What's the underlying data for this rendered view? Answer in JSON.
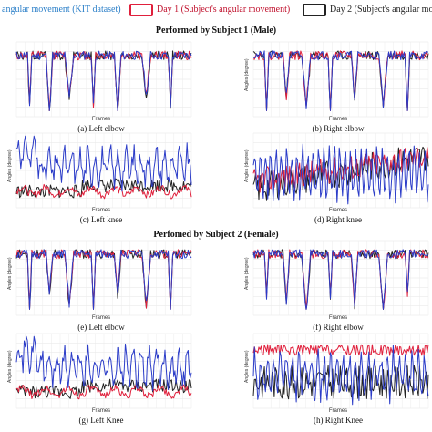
{
  "legend": [
    {
      "label": "angular movement (KIT dataset)",
      "color": "#2b3cc8"
    },
    {
      "label": "Day 1 (Subject's angular movement)",
      "color": "#e0203c"
    },
    {
      "label": "Day 2 (Subject's angular mo",
      "color": "#222222"
    }
  ],
  "sections": [
    {
      "title": "Performed by Subject 1 (Male)"
    },
    {
      "title": "Perfomed by Subject 2 (Female)"
    }
  ],
  "chart_data": [
    {
      "type": "line",
      "caption": "(a) Left elbow",
      "xlabel": "Frames",
      "ylabel": "",
      "pattern": "elbow",
      "seed": 1,
      "series": [
        {
          "name": "angular movement (KIT dataset)",
          "color": "#2b3cc8"
        },
        {
          "name": "Day 1 (Subject's angular movement)",
          "color": "#e0203c"
        },
        {
          "name": "Day 2 (Subject's angular mo",
          "color": "#222222"
        }
      ]
    },
    {
      "type": "line",
      "caption": "(b) Right elbow",
      "xlabel": "Frames",
      "ylabel": "Angles (degree)",
      "pattern": "elbow",
      "seed": 2,
      "series": [
        {
          "name": "angular movement (KIT dataset)",
          "color": "#2b3cc8"
        },
        {
          "name": "Day 1 (Subject's angular movement)",
          "color": "#e0203c"
        },
        {
          "name": "Day 2 (Subject's angular mo",
          "color": "#222222"
        }
      ]
    },
    {
      "type": "line",
      "caption": "(c) Left knee",
      "xlabel": "Frames",
      "ylabel": "Angles (degree)",
      "pattern": "knee_left",
      "seed": 3,
      "series": [
        {
          "name": "angular movement (KIT dataset)",
          "color": "#2b3cc8"
        },
        {
          "name": "Day 1 (Subject's angular movement)",
          "color": "#e0203c"
        },
        {
          "name": "Day 2 (Subject's angular mo",
          "color": "#222222"
        }
      ]
    },
    {
      "type": "line",
      "caption": "(d) Right knee",
      "xlabel": "Frames",
      "ylabel": "Angles (degree)",
      "pattern": "knee_right1",
      "seed": 4,
      "series": [
        {
          "name": "angular movement (KIT dataset)",
          "color": "#2b3cc8"
        },
        {
          "name": "Day 1 (Subject's angular movement)",
          "color": "#e0203c"
        },
        {
          "name": "Day 2 (Subject's angular mo",
          "color": "#222222"
        }
      ]
    },
    {
      "type": "line",
      "caption": "(e) Left elbow",
      "xlabel": "Frames",
      "ylabel": "Angles (degree)",
      "pattern": "elbow",
      "seed": 5,
      "series": [
        {
          "name": "angular movement (KIT dataset)",
          "color": "#2b3cc8"
        },
        {
          "name": "Day 1 (Subject's angular movement)",
          "color": "#e0203c"
        },
        {
          "name": "Day 2 (Subject's angular mo",
          "color": "#222222"
        }
      ]
    },
    {
      "type": "line",
      "caption": "(f) Right elbow",
      "xlabel": "Frames",
      "ylabel": "Angles (degree)",
      "pattern": "elbow",
      "seed": 6,
      "series": [
        {
          "name": "angular movement (KIT dataset)",
          "color": "#2b3cc8"
        },
        {
          "name": "Day 1 (Subject's angular movement)",
          "color": "#e0203c"
        },
        {
          "name": "Day 2 (Subject's angular mo",
          "color": "#222222"
        }
      ]
    },
    {
      "type": "line",
      "caption": "(g) Left Knee",
      "xlabel": "Frames",
      "ylabel": "Angles (degree)",
      "pattern": "knee_left",
      "seed": 7,
      "series": [
        {
          "name": "angular movement (KIT dataset)",
          "color": "#2b3cc8"
        },
        {
          "name": "Day 1 (Subject's angular movement)",
          "color": "#e0203c"
        },
        {
          "name": "Day 2 (Subject's angular mo",
          "color": "#222222"
        }
      ]
    },
    {
      "type": "line",
      "caption": "(h) Right Knee",
      "xlabel": "Frames",
      "ylabel": "Angles (degree)",
      "pattern": "knee_right2",
      "seed": 8,
      "series": [
        {
          "name": "angular movement (KIT dataset)",
          "color": "#2b3cc8"
        },
        {
          "name": "Day 1 (Subject's angular movement)",
          "color": "#e0203c"
        },
        {
          "name": "Day 2 (Subject's angular mo",
          "color": "#222222"
        }
      ]
    }
  ]
}
